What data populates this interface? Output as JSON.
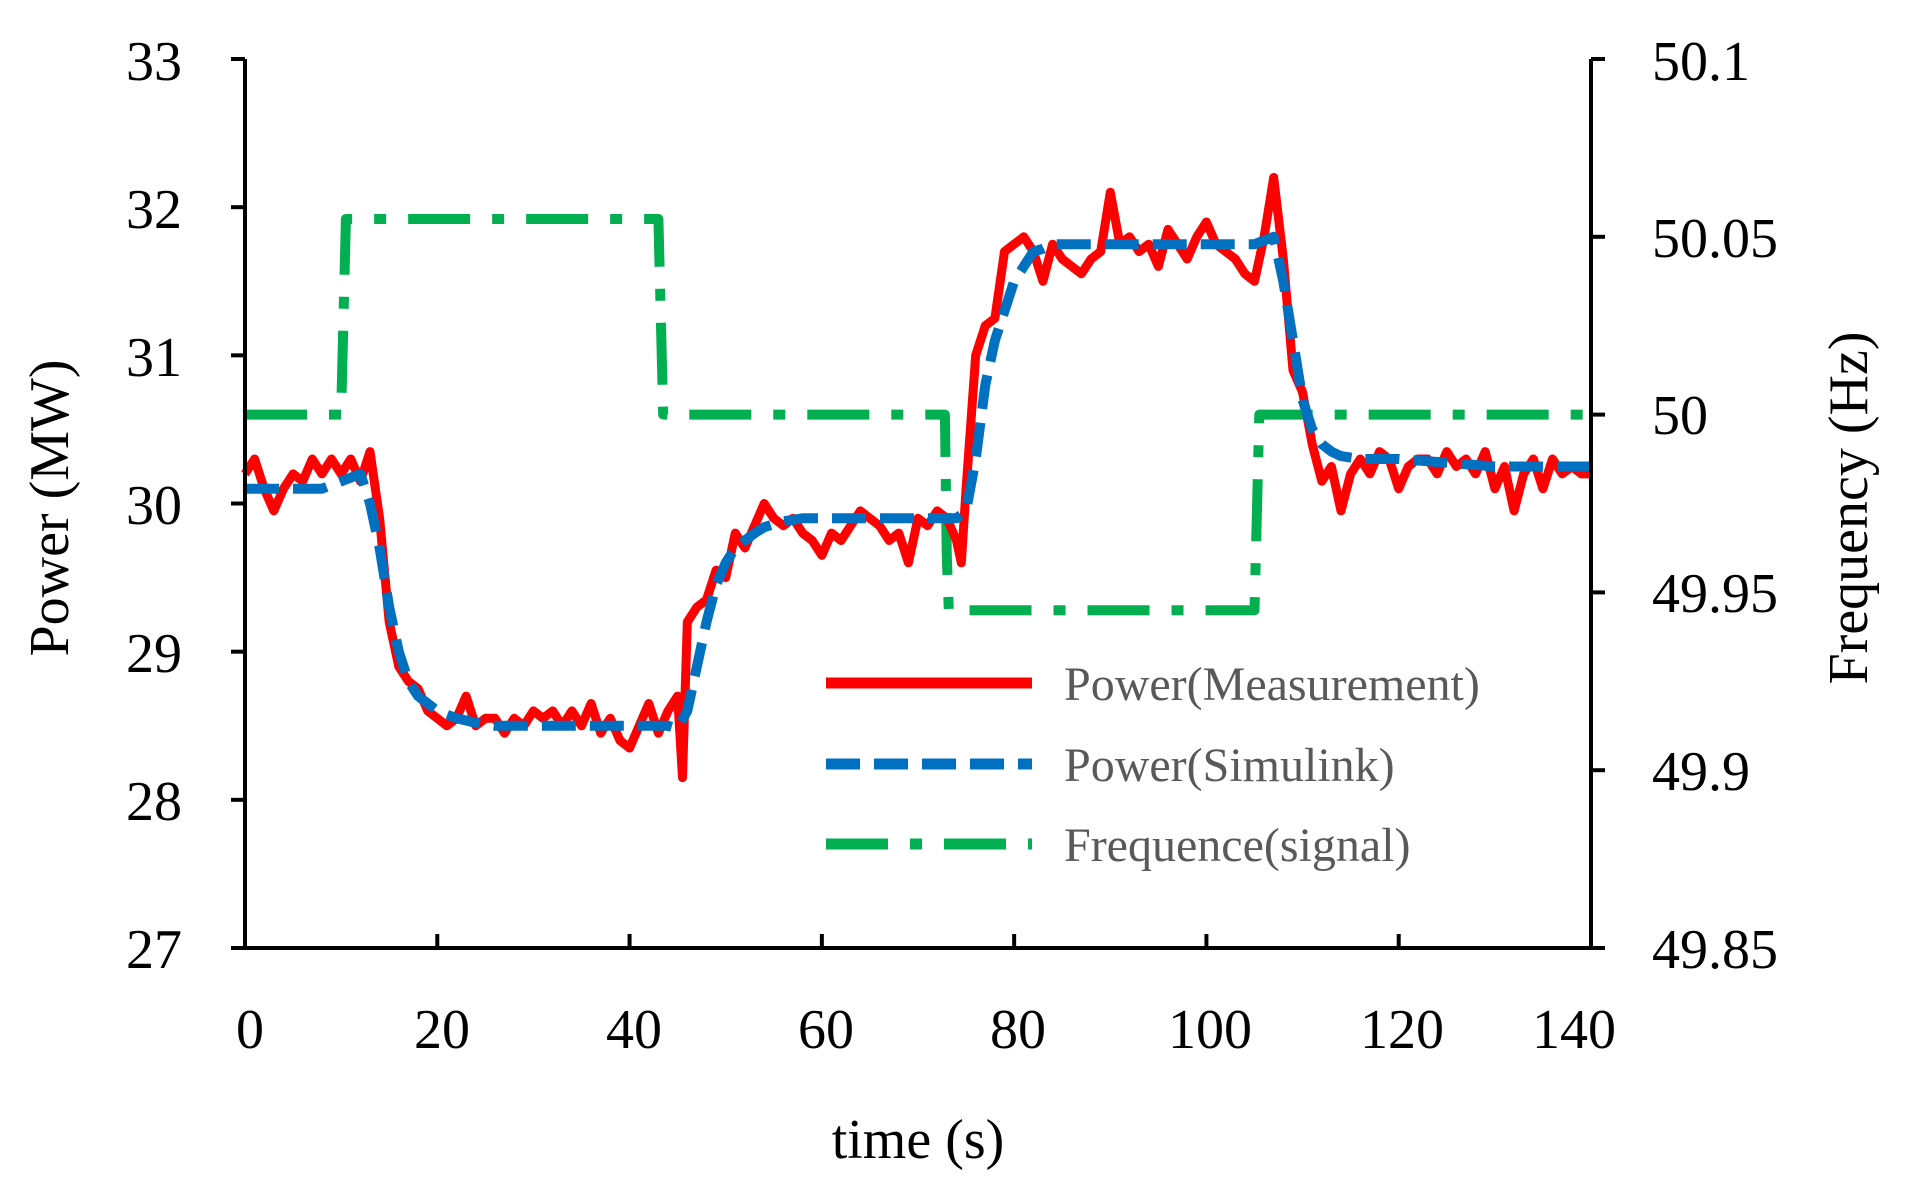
{
  "chart_data": {
    "type": "line",
    "title": "",
    "xlabel": "time (s)",
    "ylabel": "Power (MW)",
    "y2label": "Frequency (Hz)",
    "xlim": [
      0,
      140
    ],
    "ylim": [
      27,
      33
    ],
    "y2lim": [
      49.85,
      50.1
    ],
    "xticks": [
      "0",
      "20",
      "40",
      "60",
      "80",
      "100",
      "120",
      "140"
    ],
    "yticks": [
      "27",
      "28",
      "29",
      "30",
      "31",
      "32",
      "33"
    ],
    "y2ticks": [
      "49.85",
      "49.9",
      "49.95",
      "50",
      "50.05",
      "50.1"
    ],
    "grid": false,
    "legend_position": "bottom-right",
    "colors": {
      "measurement": "#ff0000",
      "simulink": "#0070c0",
      "frequency": "#00b050"
    },
    "series": [
      {
        "name": "Power(Measurement)",
        "axis": "left",
        "style": "solid",
        "x": [
          0,
          1,
          2,
          3,
          4,
          5,
          6,
          7,
          8,
          9,
          10,
          11,
          12,
          13,
          14,
          15,
          16,
          17,
          18,
          19,
          20,
          21,
          22,
          23,
          24,
          25,
          26,
          27,
          28,
          29,
          30,
          31,
          32,
          33,
          34,
          35,
          36,
          37,
          38,
          39,
          40,
          41,
          42,
          43,
          44,
          45,
          45.5,
          46,
          47,
          48,
          49,
          50,
          51,
          52,
          53,
          54,
          55,
          56,
          57,
          58,
          59,
          60,
          61,
          62,
          63,
          64,
          65,
          66,
          67,
          68,
          69,
          70,
          71,
          72,
          73,
          74,
          74.5,
          75,
          76,
          77,
          78,
          79,
          80,
          81,
          82,
          83,
          84,
          85,
          86,
          87,
          88,
          89,
          90,
          91,
          92,
          93,
          94,
          95,
          96,
          97,
          98,
          99,
          100,
          101,
          102,
          103,
          104,
          105,
          106,
          107,
          108,
          109,
          110,
          111,
          112,
          113,
          114,
          115,
          116,
          117,
          118,
          119,
          120,
          121,
          122,
          123,
          124,
          125,
          126,
          127,
          128,
          129,
          130,
          131,
          132,
          133,
          134,
          135,
          136,
          137,
          138,
          139,
          140
        ],
        "values": [
          30.2,
          30.3,
          30.1,
          29.95,
          30.1,
          30.2,
          30.15,
          30.3,
          30.2,
          30.3,
          30.2,
          30.3,
          30.15,
          30.35,
          29.9,
          29.2,
          28.9,
          28.8,
          28.75,
          28.6,
          28.55,
          28.5,
          28.55,
          28.7,
          28.5,
          28.55,
          28.55,
          28.45,
          28.55,
          28.5,
          28.6,
          28.55,
          28.6,
          28.5,
          28.6,
          28.5,
          28.65,
          28.45,
          28.55,
          28.4,
          28.35,
          28.5,
          28.65,
          28.45,
          28.6,
          28.7,
          28.15,
          29.2,
          29.3,
          29.35,
          29.55,
          29.5,
          29.8,
          29.7,
          29.85,
          30.0,
          29.9,
          29.85,
          29.9,
          29.8,
          29.75,
          29.65,
          29.8,
          29.75,
          29.85,
          29.95,
          29.9,
          29.85,
          29.75,
          29.8,
          29.6,
          29.9,
          29.85,
          29.95,
          29.9,
          29.75,
          29.6,
          30.1,
          31.0,
          31.2,
          31.25,
          31.7,
          31.75,
          31.8,
          31.7,
          31.5,
          31.75,
          31.65,
          31.6,
          31.55,
          31.65,
          31.7,
          32.1,
          31.75,
          31.8,
          31.7,
          31.75,
          31.6,
          31.85,
          31.75,
          31.65,
          31.8,
          31.9,
          31.75,
          31.7,
          31.65,
          31.55,
          31.5,
          31.8,
          32.2,
          31.65,
          30.9,
          30.75,
          30.4,
          30.15,
          30.25,
          29.95,
          30.2,
          30.3,
          30.2,
          30.35,
          30.3,
          30.1,
          30.25,
          30.3,
          30.3,
          30.2,
          30.35,
          30.25,
          30.3,
          30.2,
          30.35,
          30.1,
          30.25,
          29.95,
          30.2,
          30.3,
          30.1,
          30.3,
          30.2,
          30.25,
          30.2,
          30.2
        ]
      },
      {
        "name": "Power(Simulink)",
        "axis": "left",
        "style": "dashed",
        "x": [
          0,
          8,
          10,
          12,
          13,
          14,
          15,
          16,
          17,
          18,
          20,
          22,
          24,
          26,
          28,
          30,
          34,
          40,
          43,
          44,
          45,
          46,
          47,
          48,
          49,
          50,
          51,
          52,
          53,
          54,
          55,
          56,
          58,
          60,
          64,
          70,
          73,
          74,
          75,
          76,
          77,
          78,
          79,
          80,
          81,
          82,
          83,
          84,
          86,
          90,
          100,
          105,
          107,
          108,
          109,
          110,
          111,
          112,
          113,
          114,
          116,
          120,
          130,
          140
        ],
        "values": [
          30.1,
          30.1,
          30.15,
          30.2,
          30.0,
          29.7,
          29.3,
          29.0,
          28.8,
          28.7,
          28.6,
          28.55,
          28.52,
          28.5,
          28.5,
          28.5,
          28.5,
          28.5,
          28.5,
          28.5,
          28.48,
          28.6,
          28.9,
          29.2,
          29.45,
          29.6,
          29.7,
          29.75,
          29.8,
          29.84,
          29.86,
          29.88,
          29.9,
          29.9,
          29.9,
          29.9,
          29.9,
          29.9,
          29.95,
          30.3,
          30.8,
          31.1,
          31.3,
          31.5,
          31.6,
          31.7,
          31.72,
          31.75,
          31.75,
          31.75,
          31.75,
          31.75,
          31.8,
          31.5,
          31.1,
          30.7,
          30.5,
          30.4,
          30.35,
          30.32,
          30.3,
          30.3,
          30.25,
          30.25
        ]
      },
      {
        "name": "Frequence(signal)",
        "axis": "right",
        "style": "dashdot",
        "x": [
          0,
          10,
          10.5,
          43,
          43.5,
          72.8,
          73,
          73.2,
          105,
          105.5,
          140
        ],
        "values": [
          50.0,
          50.0,
          50.055,
          50.055,
          50.0,
          50.0,
          49.96,
          49.945,
          49.945,
          50.0,
          50.0
        ]
      }
    ]
  }
}
